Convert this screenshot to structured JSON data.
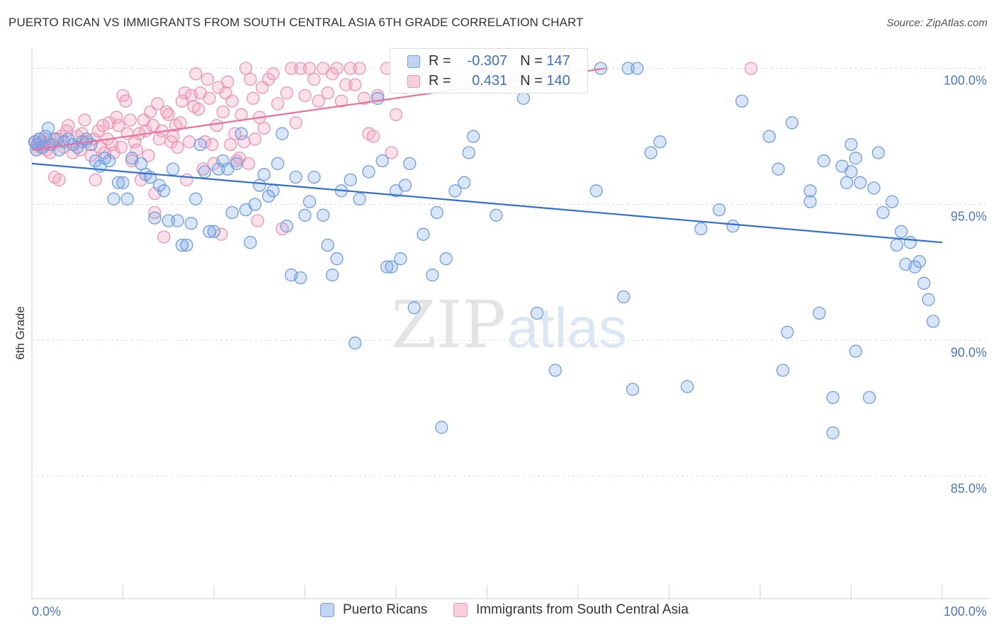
{
  "title": "PUERTO RICAN VS IMMIGRANTS FROM SOUTH CENTRAL ASIA 6TH GRADE CORRELATION CHART",
  "source": "Source: ZipAtlas.com",
  "watermark": {
    "zip": "ZIP",
    "atlas": "atlas"
  },
  "legend": {
    "series_a": {
      "r_label": "R =",
      "r_value": "-0.307",
      "n_label": "N =",
      "n_value": "147"
    },
    "series_b": {
      "r_label": "R =",
      "r_value": "0.431",
      "n_label": "N =",
      "n_value": "140"
    }
  },
  "colors": {
    "series_a": "#6f9ee0",
    "series_a_line": "#2f6fce",
    "series_b": "#ef93b2",
    "series_b_line": "#e8709a",
    "tick": "#4a78c8"
  },
  "chart_data": {
    "type": "scatter",
    "title": "PUERTO RICAN VS IMMIGRANTS FROM SOUTH CENTRAL ASIA 6TH GRADE CORRELATION CHART",
    "xlabel": "",
    "ylabel": "6th Grade",
    "xlim": [
      0,
      100
    ],
    "ylim": [
      80.5,
      100.9
    ],
    "x_tick_labels": [
      "0.0%",
      "100.0%"
    ],
    "y_ticks": [
      {
        "value": 100,
        "label": "100.0%"
      },
      {
        "value": 95,
        "label": "95.0%"
      },
      {
        "value": 90,
        "label": "90.0%"
      },
      {
        "value": 85,
        "label": "85.0%"
      }
    ],
    "grid": true,
    "legend_position": "top-center",
    "series": [
      {
        "name": "Puerto Ricans",
        "r": -0.307,
        "n": 147,
        "trend": {
          "x": [
            0,
            100
          ],
          "y": [
            96.5,
            93.6
          ]
        },
        "points": [
          [
            0.3,
            97.3
          ],
          [
            0.5,
            97.0
          ],
          [
            0.6,
            97.2
          ],
          [
            0.8,
            97.4
          ],
          [
            1.2,
            97.1
          ],
          [
            1.5,
            97.5
          ],
          [
            1.8,
            97.8
          ],
          [
            2.0,
            97.2
          ],
          [
            2.5,
            97.4
          ],
          [
            3.0,
            97.0
          ],
          [
            3.5,
            97.3
          ],
          [
            4.0,
            97.4
          ],
          [
            4.5,
            97.2
          ],
          [
            5.0,
            97.1
          ],
          [
            5.5,
            97.3
          ],
          [
            6.0,
            97.4
          ],
          [
            6.5,
            97.2
          ],
          [
            7.0,
            96.6
          ],
          [
            7.5,
            96.4
          ],
          [
            8.0,
            96.7
          ],
          [
            8.5,
            96.6
          ],
          [
            9.0,
            95.2
          ],
          [
            9.5,
            95.8
          ],
          [
            10.0,
            95.8
          ],
          [
            10.5,
            95.2
          ],
          [
            11.0,
            96.7
          ],
          [
            12.0,
            96.5
          ],
          [
            12.5,
            96.1
          ],
          [
            13.0,
            96.0
          ],
          [
            13.5,
            94.5
          ],
          [
            14.0,
            95.7
          ],
          [
            14.5,
            95.5
          ],
          [
            15.0,
            94.4
          ],
          [
            15.5,
            96.3
          ],
          [
            16.0,
            94.4
          ],
          [
            16.5,
            93.5
          ],
          [
            17.0,
            93.5
          ],
          [
            17.5,
            94.3
          ],
          [
            18.0,
            95.2
          ],
          [
            18.5,
            97.2
          ],
          [
            19.0,
            96.2
          ],
          [
            19.5,
            94.0
          ],
          [
            20.0,
            94.0
          ],
          [
            20.5,
            96.3
          ],
          [
            21.0,
            96.6
          ],
          [
            21.5,
            96.3
          ],
          [
            22.0,
            94.7
          ],
          [
            22.5,
            96.5
          ],
          [
            23.0,
            97.6
          ],
          [
            23.5,
            94.8
          ],
          [
            24.0,
            93.6
          ],
          [
            24.5,
            95.0
          ],
          [
            25.0,
            95.7
          ],
          [
            25.5,
            96.1
          ],
          [
            26.0,
            95.3
          ],
          [
            26.5,
            95.5
          ],
          [
            27.0,
            96.5
          ],
          [
            27.5,
            97.6
          ],
          [
            28.0,
            94.2
          ],
          [
            28.5,
            92.4
          ],
          [
            29.0,
            96.0
          ],
          [
            29.5,
            92.3
          ],
          [
            30.0,
            94.6
          ],
          [
            30.5,
            95.1
          ],
          [
            31.0,
            96.0
          ],
          [
            32.0,
            94.6
          ],
          [
            32.5,
            93.5
          ],
          [
            33.0,
            92.4
          ],
          [
            33.5,
            93.0
          ],
          [
            34.0,
            95.5
          ],
          [
            35.0,
            95.9
          ],
          [
            35.5,
            89.9
          ],
          [
            36.0,
            95.2
          ],
          [
            37.0,
            96.2
          ],
          [
            38.0,
            98.9
          ],
          [
            38.5,
            96.6
          ],
          [
            39.0,
            92.7
          ],
          [
            39.5,
            92.7
          ],
          [
            40.0,
            95.5
          ],
          [
            40.5,
            93.0
          ],
          [
            41.0,
            95.7
          ],
          [
            41.5,
            96.5
          ],
          [
            42.0,
            91.2
          ],
          [
            42.5,
            100.0
          ],
          [
            43.0,
            93.9
          ],
          [
            43.5,
            99.7
          ],
          [
            44.0,
            92.4
          ],
          [
            44.5,
            94.7
          ],
          [
            45.0,
            86.8
          ],
          [
            45.5,
            93.0
          ],
          [
            46.5,
            95.5
          ],
          [
            47.5,
            95.8
          ],
          [
            48.0,
            96.9
          ],
          [
            48.5,
            97.5
          ],
          [
            50.0,
            100.0
          ],
          [
            51.0,
            94.6
          ],
          [
            53.0,
            99.5
          ],
          [
            54.0,
            98.9
          ],
          [
            55.5,
            91.0
          ],
          [
            57.5,
            88.9
          ],
          [
            58.5,
            100.0
          ],
          [
            62.0,
            95.5
          ],
          [
            62.5,
            100.0
          ],
          [
            65.0,
            91.6
          ],
          [
            65.5,
            100.0
          ],
          [
            66.0,
            88.2
          ],
          [
            66.5,
            100.0
          ],
          [
            68.0,
            96.9
          ],
          [
            69.0,
            97.3
          ],
          [
            72.0,
            88.3
          ],
          [
            73.5,
            94.1
          ],
          [
            75.5,
            94.8
          ],
          [
            77.0,
            94.2
          ],
          [
            78.0,
            98.8
          ],
          [
            81.0,
            97.5
          ],
          [
            82.0,
            96.3
          ],
          [
            82.5,
            88.9
          ],
          [
            83.0,
            90.3
          ],
          [
            83.5,
            98.0
          ],
          [
            85.5,
            95.1
          ],
          [
            85.5,
            95.5
          ],
          [
            86.5,
            91.0
          ],
          [
            87.0,
            96.6
          ],
          [
            88.0,
            87.9
          ],
          [
            88.0,
            86.6
          ],
          [
            89.0,
            96.4
          ],
          [
            89.5,
            95.8
          ],
          [
            90.0,
            96.2
          ],
          [
            90.0,
            97.2
          ],
          [
            90.5,
            96.7
          ],
          [
            90.5,
            89.6
          ],
          [
            91.0,
            95.8
          ],
          [
            92.0,
            87.9
          ],
          [
            92.5,
            95.6
          ],
          [
            93.0,
            96.9
          ],
          [
            93.5,
            94.7
          ],
          [
            94.5,
            95.1
          ],
          [
            95.0,
            93.5
          ],
          [
            95.5,
            94.0
          ],
          [
            96.0,
            92.8
          ],
          [
            96.5,
            93.6
          ],
          [
            97.0,
            92.7
          ],
          [
            97.5,
            92.9
          ],
          [
            98.0,
            92.1
          ],
          [
            98.5,
            91.5
          ],
          [
            99.0,
            90.7
          ]
        ]
      },
      {
        "name": "Immigrants from South Central Asia",
        "r": 0.431,
        "n": 140,
        "trend": {
          "x": [
            0,
            63
          ],
          "y": [
            97.0,
            100.0
          ]
        },
        "points": [
          [
            0.4,
            97.3
          ],
          [
            0.5,
            97.0
          ],
          [
            0.7,
            97.2
          ],
          [
            0.9,
            97.4
          ],
          [
            1.0,
            97.1
          ],
          [
            1.2,
            97.3
          ],
          [
            1.4,
            97.2
          ],
          [
            1.6,
            97.0
          ],
          [
            1.8,
            97.3
          ],
          [
            2.0,
            96.9
          ],
          [
            2.2,
            97.2
          ],
          [
            2.5,
            96.0
          ],
          [
            2.8,
            97.4
          ],
          [
            3.0,
            95.9
          ],
          [
            3.2,
            97.5
          ],
          [
            3.5,
            97.1
          ],
          [
            3.8,
            97.7
          ],
          [
            4.0,
            97.9
          ],
          [
            4.5,
            96.9
          ],
          [
            5.0,
            97.5
          ],
          [
            5.3,
            97.0
          ],
          [
            5.5,
            97.6
          ],
          [
            5.8,
            98.1
          ],
          [
            6.0,
            97.3
          ],
          [
            6.5,
            96.8
          ],
          [
            6.8,
            97.4
          ],
          [
            7.0,
            95.9
          ],
          [
            7.3,
            97.7
          ],
          [
            7.5,
            97.1
          ],
          [
            7.8,
            97.9
          ],
          [
            8.0,
            96.9
          ],
          [
            8.3,
            97.4
          ],
          [
            8.5,
            98.0
          ],
          [
            8.8,
            97.2
          ],
          [
            9.0,
            96.9
          ],
          [
            9.3,
            98.2
          ],
          [
            9.5,
            97.9
          ],
          [
            9.8,
            97.1
          ],
          [
            10.0,
            99.0
          ],
          [
            10.3,
            98.8
          ],
          [
            10.5,
            97.6
          ],
          [
            10.8,
            98.1
          ],
          [
            11.0,
            96.6
          ],
          [
            11.3,
            97.3
          ],
          [
            11.5,
            97.0
          ],
          [
            11.8,
            97.6
          ],
          [
            12.0,
            95.9
          ],
          [
            12.3,
            98.1
          ],
          [
            12.5,
            97.7
          ],
          [
            12.8,
            96.8
          ],
          [
            13.0,
            98.4
          ],
          [
            13.3,
            97.9
          ],
          [
            13.5,
            95.4
          ],
          [
            13.8,
            98.7
          ],
          [
            14.0,
            97.4
          ],
          [
            14.3,
            97.7
          ],
          [
            14.5,
            93.8
          ],
          [
            14.8,
            98.4
          ],
          [
            15.0,
            98.3
          ],
          [
            15.3,
            97.3
          ],
          [
            15.5,
            97.5
          ],
          [
            15.8,
            97.9
          ],
          [
            16.0,
            97.1
          ],
          [
            16.3,
            98.0
          ],
          [
            16.5,
            98.8
          ],
          [
            16.8,
            99.1
          ],
          [
            17.0,
            95.9
          ],
          [
            17.3,
            97.3
          ],
          [
            17.5,
            99.0
          ],
          [
            17.8,
            98.6
          ],
          [
            18.0,
            99.8
          ],
          [
            18.3,
            98.5
          ],
          [
            18.5,
            99.1
          ],
          [
            18.8,
            96.3
          ],
          [
            19.0,
            97.3
          ],
          [
            19.3,
            99.6
          ],
          [
            19.5,
            98.9
          ],
          [
            19.8,
            97.2
          ],
          [
            20.0,
            96.5
          ],
          [
            20.3,
            97.9
          ],
          [
            20.5,
            99.3
          ],
          [
            20.8,
            93.9
          ],
          [
            21.0,
            98.4
          ],
          [
            21.3,
            99.1
          ],
          [
            21.5,
            99.5
          ],
          [
            21.8,
            97.2
          ],
          [
            22.0,
            98.8
          ],
          [
            22.3,
            97.6
          ],
          [
            22.5,
            96.6
          ],
          [
            22.8,
            96.7
          ],
          [
            23.0,
            98.3
          ],
          [
            23.3,
            97.3
          ],
          [
            23.5,
            100.0
          ],
          [
            23.8,
            96.5
          ],
          [
            24.0,
            99.6
          ],
          [
            24.3,
            98.9
          ],
          [
            24.5,
            97.4
          ],
          [
            24.8,
            94.4
          ],
          [
            25.0,
            98.2
          ],
          [
            25.3,
            99.3
          ],
          [
            25.5,
            97.8
          ],
          [
            26.0,
            99.6
          ],
          [
            26.5,
            99.8
          ],
          [
            27.0,
            98.7
          ],
          [
            27.5,
            94.1
          ],
          [
            28.0,
            99.1
          ],
          [
            28.5,
            100.0
          ],
          [
            29.0,
            98.0
          ],
          [
            29.5,
            100.0
          ],
          [
            30.0,
            99.0
          ],
          [
            30.5,
            100.0
          ],
          [
            31.0,
            99.6
          ],
          [
            31.5,
            98.8
          ],
          [
            32.0,
            100.0
          ],
          [
            32.5,
            99.1
          ],
          [
            33.0,
            99.8
          ],
          [
            33.5,
            100.0
          ],
          [
            34.0,
            98.8
          ],
          [
            34.5,
            99.4
          ],
          [
            35.0,
            100.0
          ],
          [
            35.5,
            99.4
          ],
          [
            36.0,
            100.0
          ],
          [
            36.5,
            98.9
          ],
          [
            37.0,
            97.6
          ],
          [
            37.5,
            97.5
          ],
          [
            38.0,
            99.0
          ],
          [
            39.0,
            100.0
          ],
          [
            39.5,
            96.9
          ],
          [
            40.0,
            98.3
          ],
          [
            41.0,
            99.3
          ],
          [
            43.0,
            99.7
          ],
          [
            44.0,
            100.0
          ],
          [
            46.0,
            100.0
          ],
          [
            47.0,
            99.5
          ],
          [
            49.0,
            99.5
          ],
          [
            52.0,
            99.4
          ],
          [
            54.0,
            99.9
          ],
          [
            56.0,
            100.0
          ],
          [
            79.0,
            100.0
          ],
          [
            13.5,
            94.7
          ]
        ]
      }
    ]
  },
  "bottom_legend": {
    "series_a_label": "Puerto Ricans",
    "series_b_label": "Immigrants from South Central Asia"
  }
}
